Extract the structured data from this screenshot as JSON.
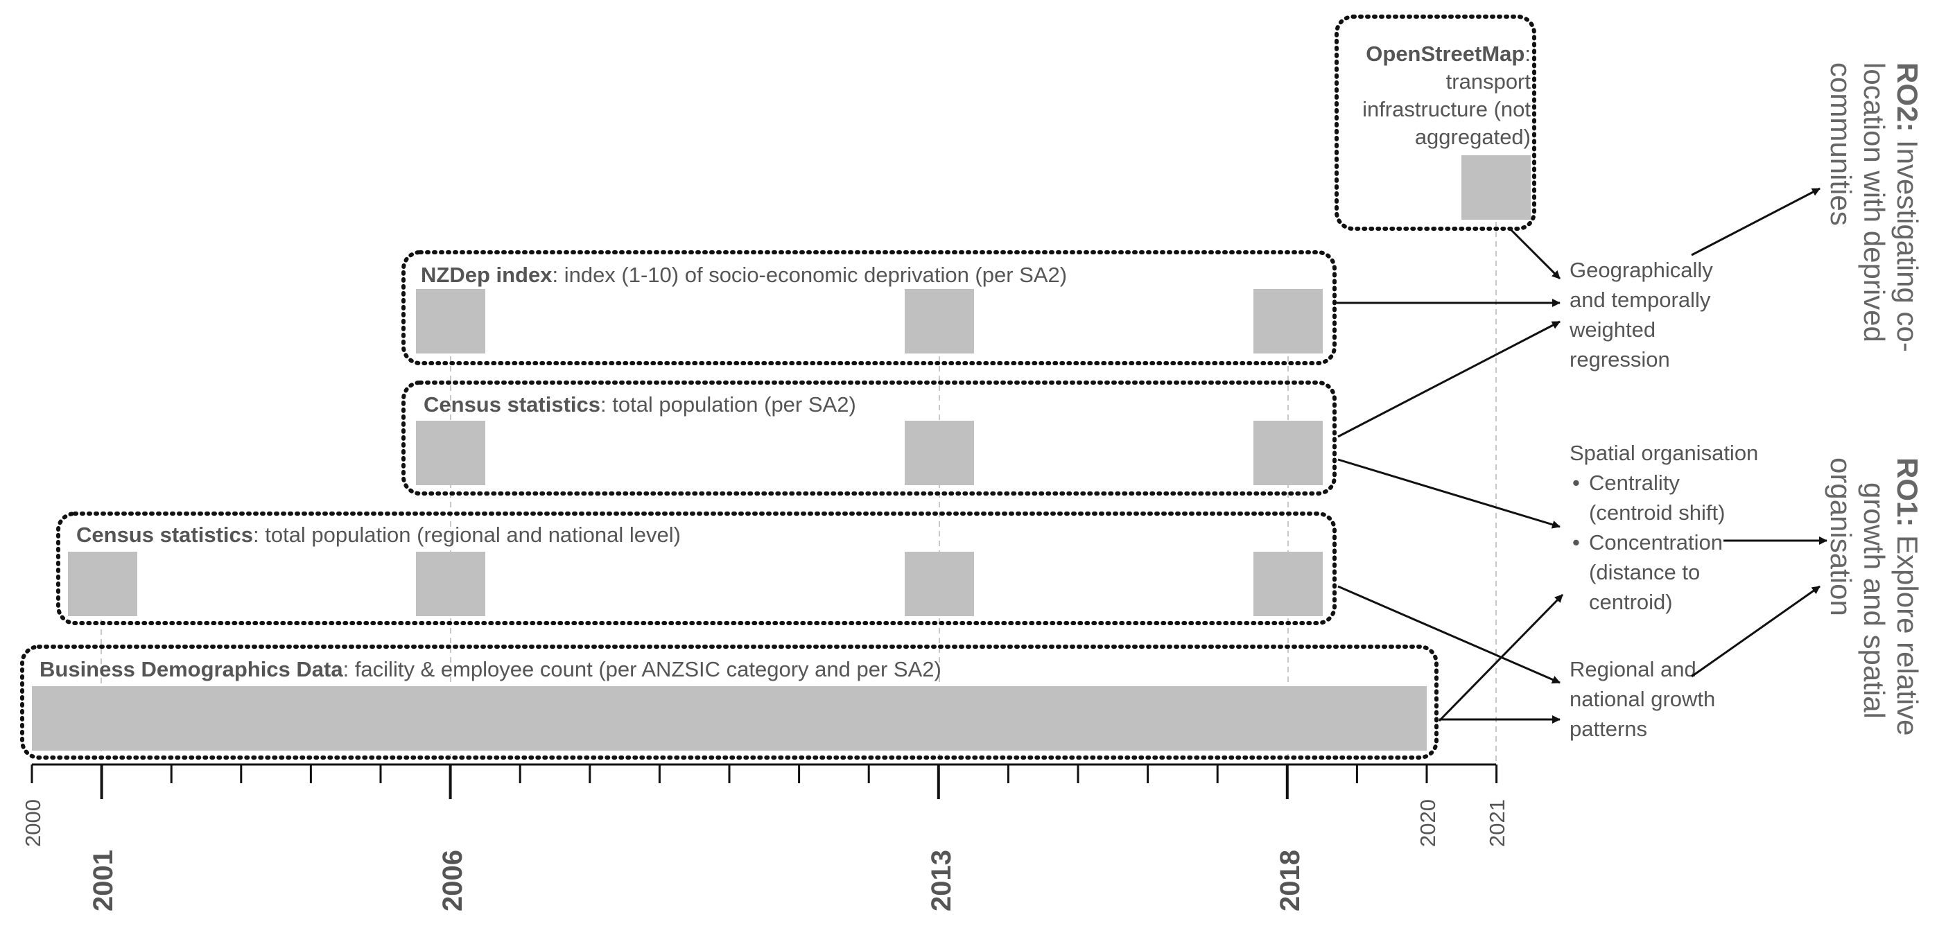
{
  "sources": [
    {
      "bold": "OpenStreetMap",
      "rest": ":",
      "lines": [
        "transport",
        "infrastructure (not",
        "aggregated)"
      ]
    },
    {
      "bold": "NZDep index",
      "rest": ": index (1-10) of socio-economic deprivation (per SA2)"
    },
    {
      "bold": "Census statistics",
      "rest": ": total population (per SA2)"
    },
    {
      "bold": "Census statistics",
      "rest": ": total population (regional and national level)"
    },
    {
      "bold": "Business Demographics Data",
      "rest": ": facility & employee count (per ANZSIC category and per SA2)"
    }
  ],
  "methods": {
    "gtwr": [
      "Geographically",
      "and temporally",
      "weighted",
      "regression"
    ],
    "spatial": {
      "title": "Spatial organisation",
      "items": [
        {
          "bullet": "•",
          "lines": [
            "Centrality",
            "(centroid shift)"
          ]
        },
        {
          "bullet": "•",
          "lines": [
            "Concentration",
            "(distance to",
            "centroid)"
          ]
        }
      ]
    },
    "growth": [
      "Regional and",
      "national growth",
      "patterns"
    ]
  },
  "objectives": {
    "ro2": {
      "bold": "RO2:",
      "lines": [
        " Investigating co-",
        "location with deprived",
        "communities"
      ]
    },
    "ro1": {
      "bold": "RO1:",
      "lines": [
        " Explore relative",
        "growth and spatial",
        "organisation"
      ]
    }
  },
  "axis": {
    "minor_labels": [
      "2000",
      "2020",
      "2021"
    ],
    "major_labels": [
      "2001",
      "2006",
      "2013",
      "2018"
    ]
  },
  "colors": {
    "block": "#c0c0c0",
    "text": "#555555",
    "border": "#111111",
    "guide": "#c8c8c8"
  }
}
